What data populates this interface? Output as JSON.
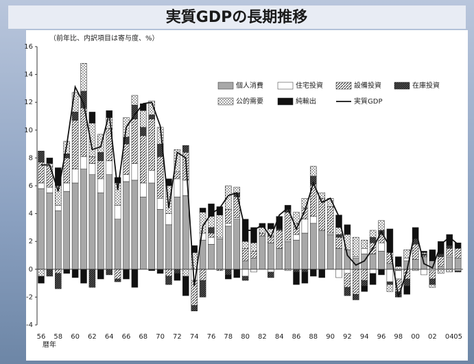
{
  "chart_data": {
    "type": "bar",
    "title": "実質GDPの長期推移",
    "subtitle": "（前年比、内訳項目は寄与度、%）",
    "xlabel": "暦年",
    "categories": [
      "56",
      null,
      "58",
      null,
      "60",
      null,
      "62",
      null,
      "64",
      null,
      "66",
      null,
      "68",
      null,
      "70",
      null,
      "72",
      null,
      "74",
      null,
      "76",
      null,
      "78",
      null,
      "80",
      null,
      "82",
      null,
      "84",
      null,
      "86",
      null,
      "88",
      null,
      "90",
      null,
      "92",
      null,
      "94",
      null,
      "96",
      null,
      "98",
      null,
      "00",
      null,
      "02",
      null,
      "04",
      "05"
    ],
    "ylim": [
      -4,
      16
    ],
    "yticks": [
      -4,
      -2,
      0,
      2,
      4,
      6,
      8,
      10,
      12,
      14,
      16
    ],
    "stacked": true,
    "series": [
      {
        "name": "個人消費",
        "color": "#a8a8a8",
        "pattern": "solid",
        "values": [
          5.8,
          5.5,
          4.2,
          5.6,
          6.2,
          7.2,
          6.8,
          5.5,
          6.8,
          3.6,
          6.3,
          6.4,
          5.2,
          6.2,
          4.3,
          3.2,
          5.2,
          5.3,
          0.0,
          2.1,
          1.8,
          2.2,
          3.1,
          3.6,
          0.6,
          0.8,
          2.4,
          1.9,
          1.5,
          2.0,
          2.1,
          2.6,
          3.3,
          2.8,
          2.5,
          1.5,
          1.4,
          0.8,
          1.1,
          1.1,
          1.3,
          0.4,
          -0.1,
          0.6,
          0.7,
          0.9,
          0.6,
          0.2,
          0.9,
          0.8
        ]
      },
      {
        "name": "住宅投資",
        "color": "#ffffff",
        "pattern": "solid",
        "values": [
          0.4,
          0.4,
          0.4,
          0.6,
          1.0,
          0.9,
          0.8,
          1.0,
          1.0,
          1.0,
          0.5,
          1.2,
          1.0,
          0.9,
          0.8,
          0.8,
          1.3,
          1.1,
          -0.8,
          0.5,
          0.5,
          0.1,
          0.2,
          0.1,
          -0.5,
          -0.2,
          0.0,
          -0.2,
          0.0,
          0.1,
          0.4,
          1.0,
          0.5,
          0.0,
          0.1,
          -0.6,
          -0.3,
          0.1,
          0.4,
          -0.3,
          0.6,
          -0.9,
          -0.6,
          0.2,
          0.0,
          -0.4,
          -0.1,
          0.0,
          0.1,
          -0.1
        ]
      },
      {
        "name": "設備投資",
        "color": "#555555",
        "pattern": "diagonal",
        "values": [
          1.5,
          1.5,
          -0.3,
          1.8,
          3.5,
          3.5,
          0.5,
          1.3,
          2.3,
          -0.7,
          2.2,
          3.2,
          3.4,
          3.7,
          3.0,
          -0.5,
          0.5,
          2.0,
          -1.8,
          -0.8,
          0.3,
          -0.1,
          1.0,
          1.5,
          0.9,
          0.5,
          0.2,
          0.5,
          1.3,
          2.0,
          0.8,
          0.8,
          2.3,
          2.3,
          1.9,
          0.8,
          -1.0,
          -1.8,
          -0.8,
          0.8,
          0.6,
          0.8,
          -0.9,
          -0.7,
          1.1,
          0.1,
          -0.6,
          0.7,
          0.5,
          0.7
        ]
      },
      {
        "name": "在庫投資",
        "color": "#333333",
        "pattern": "dense",
        "values": [
          0.8,
          -0.5,
          -1.1,
          0.3,
          0.6,
          1.2,
          -1.3,
          0.6,
          -0.4,
          -0.2,
          0.5,
          1.0,
          0.6,
          0.3,
          0.9,
          -0.6,
          -0.3,
          0.5,
          -0.4,
          -1.2,
          0.4,
          0.0,
          -0.4,
          0.3,
          -0.3,
          0.0,
          0.0,
          -0.4,
          0.1,
          0.2,
          -0.2,
          -0.2,
          0.6,
          0.0,
          0.0,
          0.2,
          -0.6,
          -0.4,
          -0.4,
          0.4,
          0.3,
          -0.2,
          -0.4,
          -0.5,
          0.4,
          0.1,
          -0.4,
          0.2,
          0.2,
          -0.1
        ]
      },
      {
        "name": "公的需要",
        "color": "#444444",
        "pattern": "dots",
        "values": [
          -0.5,
          0.2,
          1.4,
          0.9,
          1.4,
          2.0,
          2.4,
          1.3,
          0.8,
          1.6,
          1.4,
          0.7,
          1.2,
          1.0,
          1.2,
          2.0,
          1.6,
          -0.5,
          1.2,
          1.5,
          0.8,
          1.6,
          1.7,
          0.4,
          0.5,
          0.6,
          0.4,
          0.5,
          0.0,
          -0.1,
          0.8,
          0.7,
          0.7,
          0.4,
          0.6,
          0.5,
          1.1,
          1.4,
          0.6,
          0.5,
          0.7,
          -0.5,
          0.2,
          0.6,
          -0.1,
          0.1,
          -0.2,
          -0.3,
          -0.2,
          0.0
        ]
      },
      {
        "name": "純輸出",
        "color": "#111111",
        "pattern": "solid",
        "values": [
          -0.5,
          0.4,
          1.3,
          -0.3,
          -0.6,
          -1.0,
          0.8,
          -0.7,
          0.5,
          0.4,
          -0.7,
          -1.3,
          0.5,
          -0.1,
          -0.3,
          0.5,
          -0.5,
          -1.4,
          0.5,
          0.3,
          0.9,
          0.6,
          -0.3,
          -0.6,
          1.6,
          1.1,
          0.3,
          0.4,
          0.9,
          0.3,
          -0.9,
          -0.8,
          -0.5,
          -0.6,
          0.0,
          0.9,
          0.7,
          0.0,
          -0.4,
          -0.8,
          -0.4,
          1.7,
          0.7,
          -0.6,
          0.8,
          0.1,
          0.8,
          0.9,
          0.8,
          0.4
        ]
      },
      {
        "name": "実質GDP",
        "color": "#111111",
        "kind": "line",
        "values": [
          7.5,
          7.5,
          5.6,
          8.9,
          13.1,
          11.9,
          8.6,
          8.8,
          11.2,
          5.7,
          10.2,
          11.1,
          11.9,
          12.0,
          10.3,
          4.4,
          8.4,
          8.0,
          -1.2,
          3.1,
          4.0,
          4.4,
          5.3,
          5.5,
          2.8,
          2.8,
          3.2,
          2.3,
          3.9,
          4.4,
          2.9,
          4.2,
          6.2,
          4.8,
          5.1,
          3.8,
          1.0,
          0.3,
          0.6,
          1.5,
          2.7,
          1.6,
          -2.0,
          -0.1,
          2.9,
          0.4,
          0.1,
          1.8,
          2.3,
          1.8
        ]
      }
    ]
  }
}
